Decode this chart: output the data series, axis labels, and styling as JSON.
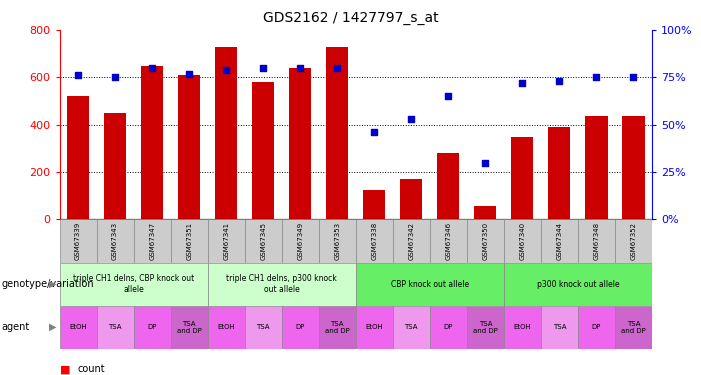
{
  "title": "GDS2162 / 1427797_s_at",
  "samples": [
    "GSM67339",
    "GSM67343",
    "GSM67347",
    "GSM67351",
    "GSM67341",
    "GSM67345",
    "GSM67349",
    "GSM67353",
    "GSM67338",
    "GSM67342",
    "GSM67346",
    "GSM67350",
    "GSM67340",
    "GSM67344",
    "GSM67348",
    "GSM67352"
  ],
  "counts": [
    520,
    450,
    650,
    610,
    730,
    580,
    640,
    730,
    125,
    170,
    280,
    55,
    350,
    390,
    435,
    435
  ],
  "percentiles": [
    76,
    75,
    80,
    77,
    79,
    80,
    80,
    80,
    46,
    53,
    65,
    30,
    72,
    73,
    75,
    75
  ],
  "geno_groups": [
    {
      "label": "triple CH1 delns, CBP knock out\nallele",
      "start": 0,
      "end": 4,
      "color": "#ccffcc"
    },
    {
      "label": "triple CH1 delns, p300 knock\nout allele",
      "start": 4,
      "end": 8,
      "color": "#ccffcc"
    },
    {
      "label": "CBP knock out allele",
      "start": 8,
      "end": 12,
      "color": "#66ee66"
    },
    {
      "label": "p300 knock out allele",
      "start": 12,
      "end": 16,
      "color": "#66ee66"
    }
  ],
  "agent_labels": [
    "EtOH",
    "TSA",
    "DP",
    "TSA\nand DP",
    "EtOH",
    "TSA",
    "DP",
    "TSA\nand DP",
    "EtOH",
    "TSA",
    "DP",
    "TSA\nand DP",
    "EtOH",
    "TSA",
    "DP",
    "TSA\nand DP"
  ],
  "agent_colors": [
    "#ee66ee",
    "#ee99ee",
    "#ee66ee",
    "#cc66cc",
    "#ee66ee",
    "#ee99ee",
    "#ee66ee",
    "#cc66cc",
    "#ee66ee",
    "#ee99ee",
    "#ee66ee",
    "#cc66cc",
    "#ee66ee",
    "#ee99ee",
    "#ee66ee",
    "#cc66cc"
  ],
  "bar_color": "#cc0000",
  "dot_color": "#0000cc",
  "ylim_left": [
    0,
    800
  ],
  "ylim_right": [
    0,
    100
  ],
  "yticks_left": [
    0,
    200,
    400,
    600,
    800
  ],
  "yticks_right": [
    0,
    25,
    50,
    75,
    100
  ],
  "background_color": "#ffffff"
}
